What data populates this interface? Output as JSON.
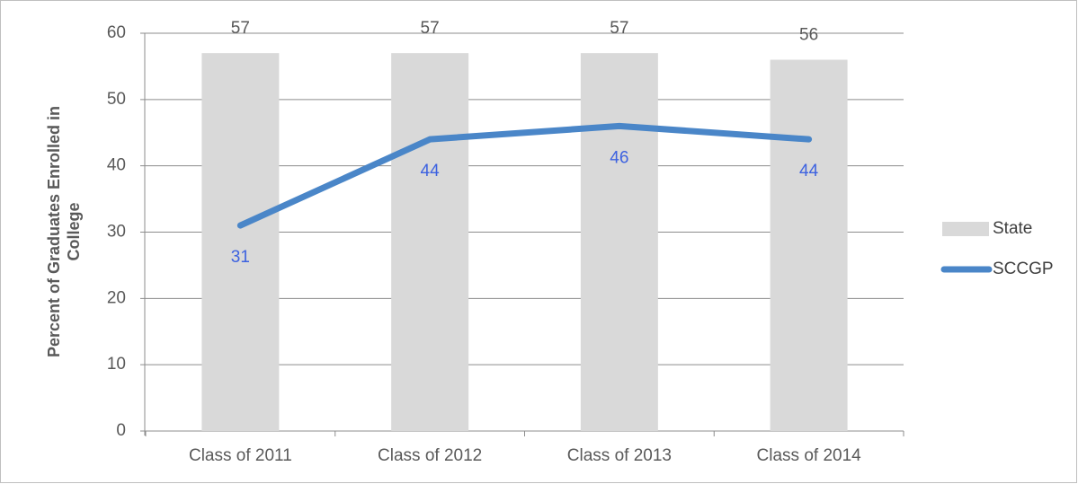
{
  "chart_data": {
    "type": "combo",
    "y_axis_label": "Percent of Graduates Enrolled in College",
    "categories": [
      "Class of 2011",
      "Class of 2012",
      "Class of 2013",
      "Class of 2014"
    ],
    "series": [
      {
        "name": "State",
        "type": "bar",
        "color": "#d9d9d9",
        "values": [
          57,
          57,
          57,
          56
        ]
      },
      {
        "name": "SCCGP",
        "type": "line",
        "color": "#4a86c8",
        "values": [
          31,
          44,
          46,
          44
        ]
      }
    ],
    "ylim": [
      0,
      60
    ],
    "yticks": [
      0,
      10,
      20,
      30,
      40,
      50,
      60
    ],
    "grid": true,
    "legend": "right"
  }
}
